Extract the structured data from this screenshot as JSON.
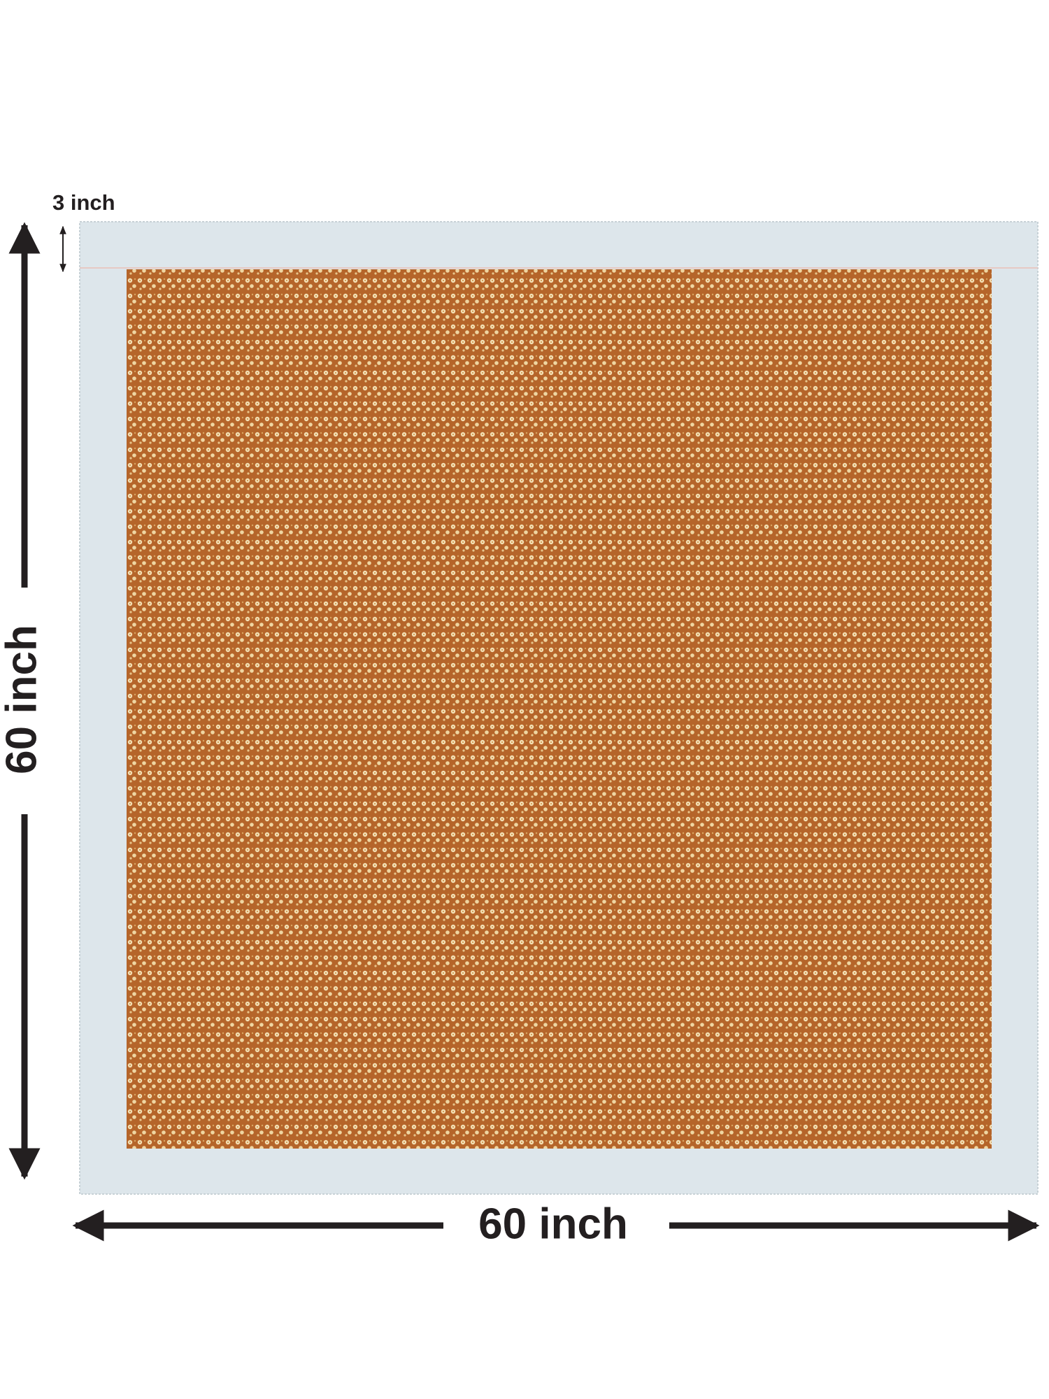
{
  "labels": {
    "border": "3 inch",
    "height": "60 inch",
    "width": "60 inch"
  }
}
